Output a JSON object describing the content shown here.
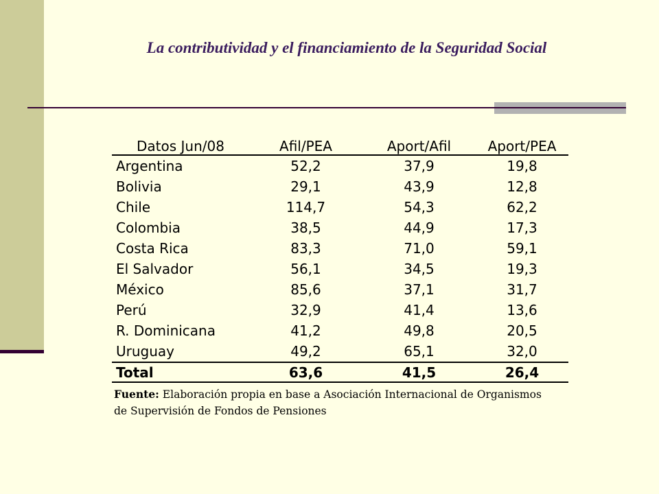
{
  "slide": {
    "title": "La contributividad y el financiamiento de la Seguridad Social"
  },
  "table": {
    "headers": [
      "Datos Jun/08",
      "Afil/PEA",
      "Aport/Afil",
      "Aport/PEA"
    ],
    "rows": [
      {
        "country": "Argentina",
        "afil_pea": "52,2",
        "aport_afil": "37,9",
        "aport_pea": "19,8"
      },
      {
        "country": "Bolivia",
        "afil_pea": "29,1",
        "aport_afil": "43,9",
        "aport_pea": "12,8"
      },
      {
        "country": "Chile",
        "afil_pea": "114,7",
        "aport_afil": "54,3",
        "aport_pea": "62,2"
      },
      {
        "country": "Colombia",
        "afil_pea": "38,5",
        "aport_afil": "44,9",
        "aport_pea": "17,3"
      },
      {
        "country": "Costa Rica",
        "afil_pea": "83,3",
        "aport_afil": "71,0",
        "aport_pea": "59,1"
      },
      {
        "country": "El Salvador",
        "afil_pea": "56,1",
        "aport_afil": "34,5",
        "aport_pea": "19,3"
      },
      {
        "country": "México",
        "afil_pea": "85,6",
        "aport_afil": "37,1",
        "aport_pea": "31,7"
      },
      {
        "country": "Perú",
        "afil_pea": "32,9",
        "aport_afil": "41,4",
        "aport_pea": "13,6"
      },
      {
        "country": "R. Dominicana",
        "afil_pea": "41,2",
        "aport_afil": "49,8",
        "aport_pea": "20,5"
      },
      {
        "country": "Uruguay",
        "afil_pea": "49,2",
        "aport_afil": "65,1",
        "aport_pea": "32,0"
      }
    ],
    "total": {
      "label": "Total",
      "afil_pea": "63,6",
      "aport_afil": "41,5",
      "aport_pea": "26,4"
    }
  },
  "source": {
    "label": "Fuente:",
    "text_line1": " Elaboración propia en base a Asociación Internacional de Organismos",
    "text_line2": "de Supervisión de Fondos de Pensiones"
  },
  "colors": {
    "background": "#FFFFE5",
    "sidebar": "#CCCC99",
    "title": "#3A1C5E",
    "rule": "#330033",
    "rule_accent": "#B2B2B2"
  }
}
